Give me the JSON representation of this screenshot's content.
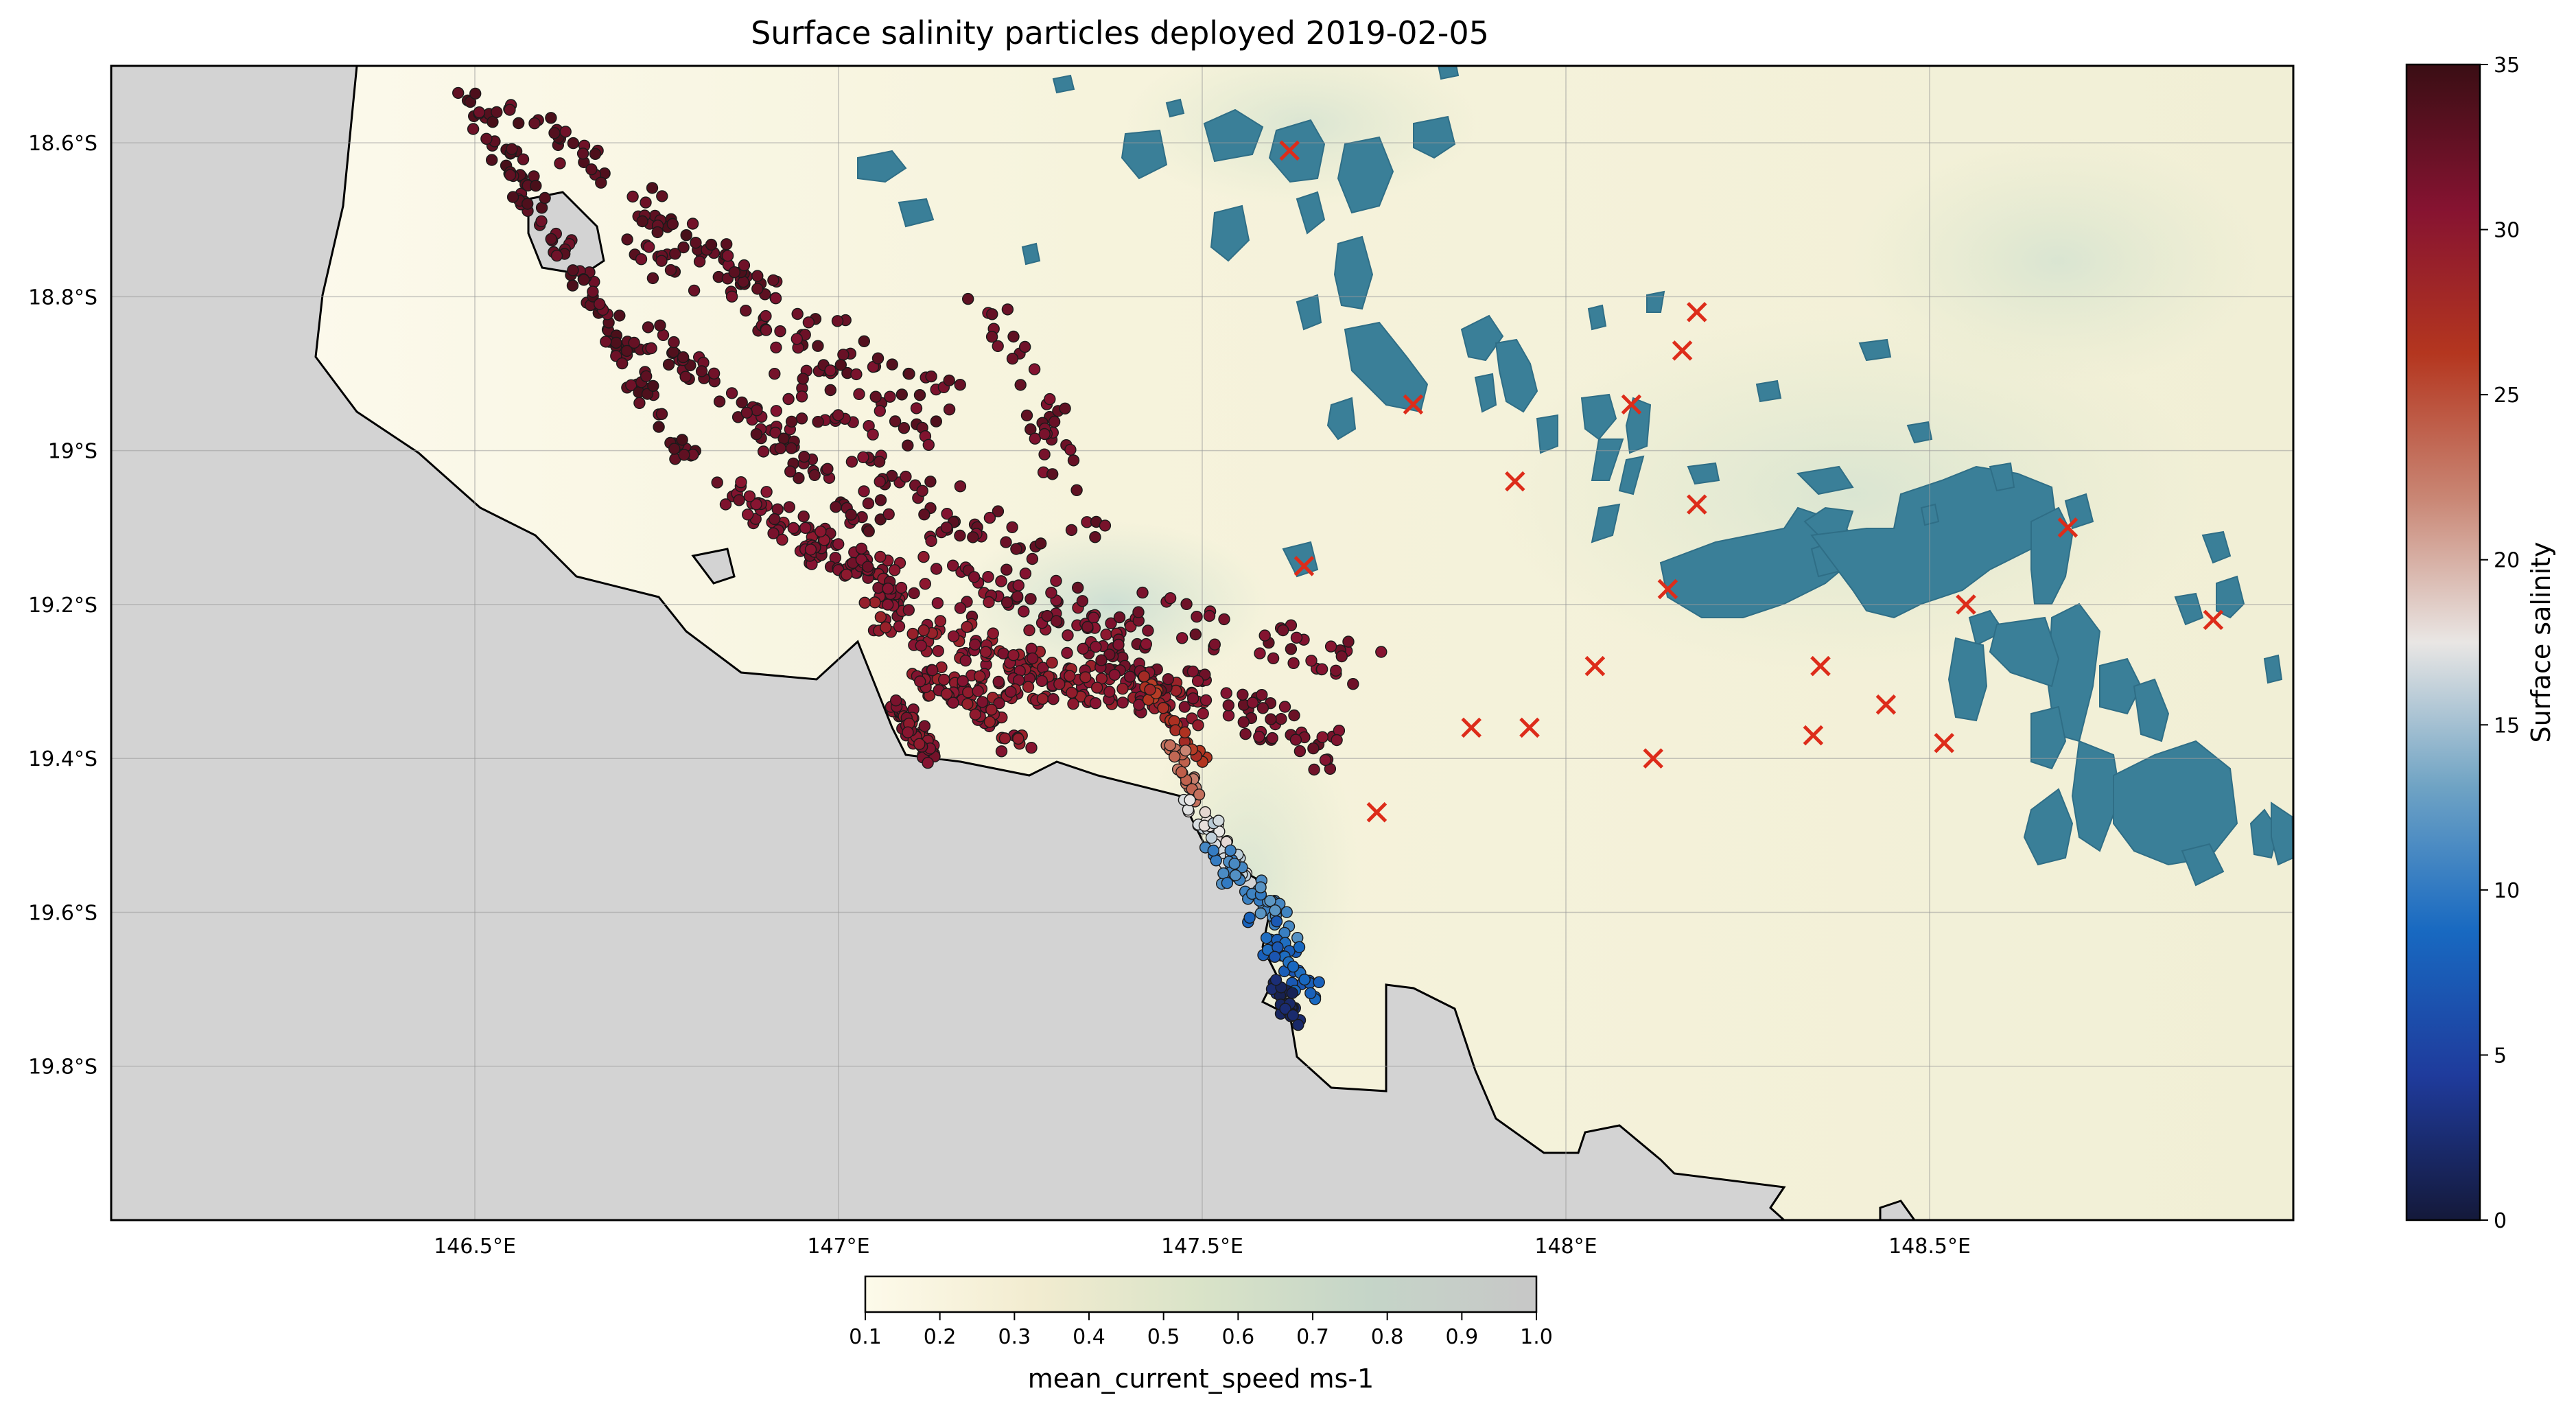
{
  "figure": {
    "title": "Surface salinity particles deployed 2019-02-05"
  },
  "map": {
    "lon_range": [
      146.0,
      149.0
    ],
    "lat_range": [
      -20.0,
      -18.5
    ],
    "x_ticks": [
      {
        "lon": 146.5,
        "label": "146.5°E"
      },
      {
        "lon": 147.0,
        "label": "147°E"
      },
      {
        "lon": 147.5,
        "label": "147.5°E"
      },
      {
        "lon": 148.0,
        "label": "148°E"
      },
      {
        "lon": 148.5,
        "label": "148.5°E"
      }
    ],
    "y_ticks": [
      {
        "lat": -18.6,
        "label": "18.6°S"
      },
      {
        "lat": -18.8,
        "label": "18.8°S"
      },
      {
        "lat": -19.0,
        "label": "19°S"
      },
      {
        "lat": -19.2,
        "label": "19.2°S"
      },
      {
        "lat": -19.4,
        "label": "19.4°S"
      },
      {
        "lat": -19.6,
        "label": "19.6°S"
      },
      {
        "lat": -19.8,
        "label": "19.8°S"
      }
    ],
    "land_color": "#d3d3d3",
    "reef_color": "#3a7f98",
    "grid": true,
    "release_points": [
      [
        147.62,
        -18.61
      ],
      [
        147.79,
        -18.94
      ],
      [
        147.93,
        -19.04
      ],
      [
        147.64,
        -19.15
      ],
      [
        148.09,
        -18.94
      ],
      [
        148.18,
        -18.82
      ],
      [
        148.16,
        -18.87
      ],
      [
        148.18,
        -19.07
      ],
      [
        148.14,
        -19.18
      ],
      [
        148.04,
        -19.28
      ],
      [
        148.12,
        -19.4
      ],
      [
        147.87,
        -19.36
      ],
      [
        147.95,
        -19.36
      ],
      [
        147.74,
        -19.47
      ],
      [
        148.35,
        -19.28
      ],
      [
        148.34,
        -19.37
      ],
      [
        148.44,
        -19.33
      ],
      [
        148.52,
        -19.38
      ],
      [
        148.55,
        -19.2
      ],
      [
        148.69,
        -19.1
      ],
      [
        148.89,
        -19.22
      ]
    ],
    "release_marker_color": "#dd2c1a",
    "particle_tracks": [
      {
        "p0": [
          146.48,
          -18.52
        ],
        "p1": [
          146.8,
          -19.02
        ],
        "salinity": 33,
        "spread": 0.018,
        "n": 120
      },
      {
        "p0": [
          146.55,
          -18.55
        ],
        "p1": [
          146.9,
          -18.8
        ],
        "salinity": 33,
        "spread": 0.02,
        "n": 60
      },
      {
        "p0": [
          146.75,
          -18.85
        ],
        "p1": [
          147.05,
          -19.1
        ],
        "salinity": 32.5,
        "spread": 0.018,
        "n": 70
      },
      {
        "p0": [
          146.7,
          -18.7
        ],
        "p1": [
          147.15,
          -18.95
        ],
        "salinity": 32.5,
        "spread": 0.035,
        "n": 80
      },
      {
        "p0": [
          146.9,
          -18.88
        ],
        "p1": [
          147.3,
          -19.2
        ],
        "salinity": 32,
        "spread": 0.05,
        "n": 90
      },
      {
        "p0": [
          147.2,
          -18.8
        ],
        "p1": [
          147.35,
          -19.1
        ],
        "salinity": 32,
        "spread": 0.03,
        "n": 40
      },
      {
        "p0": [
          146.85,
          -19.05
        ],
        "p1": [
          147.1,
          -19.2
        ],
        "salinity": 31,
        "spread": 0.02,
        "n": 80
      },
      {
        "p0": [
          146.92,
          -19.12
        ],
        "p1": [
          147.42,
          -19.25
        ],
        "salinity": 31,
        "spread": 0.03,
        "n": 90
      },
      {
        "p0": [
          147.05,
          -19.22
        ],
        "p1": [
          147.5,
          -19.34
        ],
        "salinity": 30,
        "spread": 0.025,
        "n": 130
      },
      {
        "p0": [
          147.1,
          -19.3
        ],
        "p1": [
          147.45,
          -19.32
        ],
        "salinity": 30,
        "spread": 0.02,
        "n": 80
      },
      {
        "p0": [
          147.08,
          -19.33
        ],
        "p1": [
          147.13,
          -19.4
        ],
        "salinity": 30.5,
        "spread": 0.012,
        "n": 60
      },
      {
        "p0": [
          147.15,
          -19.3
        ],
        "p1": [
          147.25,
          -19.38
        ],
        "salinity": 30,
        "spread": 0.02,
        "n": 40
      },
      {
        "p0": [
          147.35,
          -19.25
        ],
        "p1": [
          147.7,
          -19.4
        ],
        "salinity": 31.5,
        "spread": 0.025,
        "n": 80
      },
      {
        "p0": [
          147.4,
          -19.2
        ],
        "p1": [
          147.72,
          -19.28
        ],
        "salinity": 31.5,
        "spread": 0.03,
        "n": 40
      },
      {
        "p0": [
          147.42,
          -19.3
        ],
        "p1": [
          147.5,
          -19.4
        ],
        "salinity": 27,
        "spread": 0.01,
        "n": 25
      },
      {
        "p0": [
          147.46,
          -19.38
        ],
        "p1": [
          147.49,
          -19.45
        ],
        "salinity": 23,
        "spread": 0.01,
        "n": 25
      },
      {
        "p0": [
          147.48,
          -19.46
        ],
        "p1": [
          147.56,
          -19.55
        ],
        "salinity": 17,
        "spread": 0.014,
        "n": 40
      },
      {
        "p0": [
          147.52,
          -19.53
        ],
        "p1": [
          147.62,
          -19.62
        ],
        "salinity": 11,
        "spread": 0.018,
        "n": 45
      },
      {
        "p0": [
          147.58,
          -19.62
        ],
        "p1": [
          147.65,
          -19.7
        ],
        "salinity": 8,
        "spread": 0.02,
        "n": 35
      },
      {
        "p0": [
          147.6,
          -19.68
        ],
        "p1": [
          147.63,
          -19.75
        ],
        "salinity": 2,
        "spread": 0.012,
        "n": 25
      }
    ]
  },
  "salinity_colorbar": {
    "label": "Surface salinity",
    "min": 0,
    "max": 35,
    "ticks": [
      "0",
      "5",
      "10",
      "15",
      "20",
      "25",
      "30",
      "35"
    ],
    "colors": [
      "#14193a",
      "#1f3b9c",
      "#1869c1",
      "#6fa3c4",
      "#e9e6e4",
      "#c98674",
      "#b4361f",
      "#861331",
      "#3a0e14"
    ]
  },
  "speed_colorbar": {
    "label": "mean_current_speed ms-1",
    "min": 0.1,
    "max": 1.0,
    "ticks": [
      "0.1",
      "0.2",
      "0.3",
      "0.4",
      "0.5",
      "0.6",
      "0.7",
      "0.8",
      "0.9",
      "1.0"
    ],
    "colors": [
      "#fdfaea",
      "#f2ecd0",
      "#d9e3c8",
      "#c5d5c8",
      "#c7c7c7"
    ]
  }
}
